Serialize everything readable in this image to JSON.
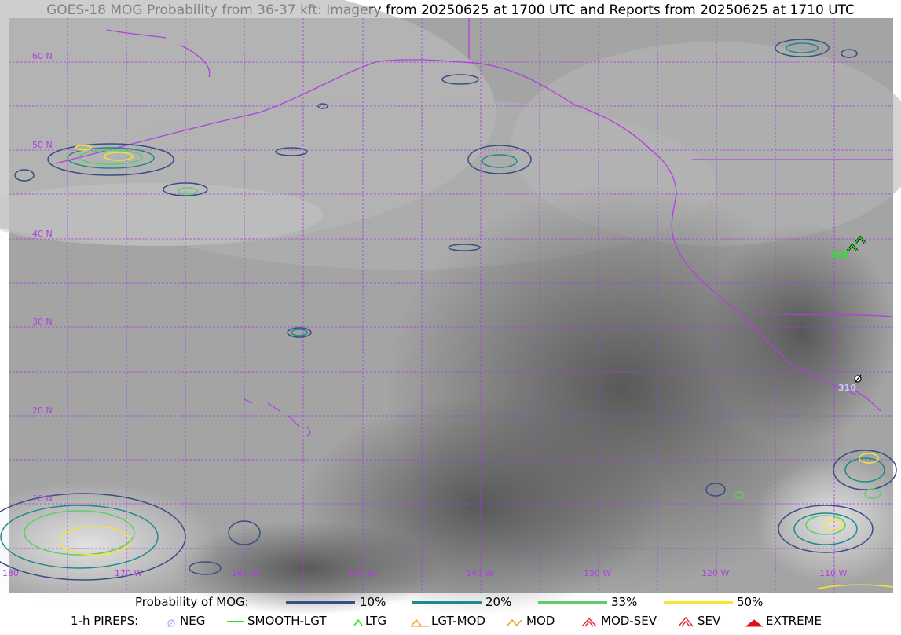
{
  "title": "GOES-18 MOG Probability from 36-37 kft: Imagery from 20250625 at 1700 UTC and Reports from 20250625 at 1710 UTC",
  "map": {
    "lat_labels": [
      "60 N",
      "50 N",
      "40 N",
      "30 N",
      "20 N",
      "10 N"
    ],
    "lon_labels": [
      "180",
      "170 W",
      "160 W",
      "150 W",
      "140 W",
      "130 W",
      "120 W",
      "110 W"
    ],
    "pirep_reports": [
      {
        "type": "LTG",
        "altitude_label": "330"
      },
      {
        "type": "NEG",
        "altitude_label": "310"
      }
    ],
    "colors": {
      "border": "#b040e0",
      "grid": "#a040e0",
      "ltg": "#22ee22",
      "neg": "#c8c8ff"
    }
  },
  "legend": {
    "probability": {
      "title": "Probability of MOG:",
      "items": [
        {
          "label": "10%",
          "color": "#3a4e86"
        },
        {
          "label": "20%",
          "color": "#1f8a88"
        },
        {
          "label": "33%",
          "color": "#5fcb6a"
        },
        {
          "label": "50%",
          "color": "#f5e530"
        }
      ]
    },
    "pireps": {
      "title": "1-h PIREPS:",
      "items": [
        {
          "label": "NEG",
          "icon": "neg-slashed-circle-icon",
          "color": "#b0b8ff"
        },
        {
          "label": "SMOOTH-LGT",
          "icon": "smooth-lgt-line-icon",
          "color": "#22ee22"
        },
        {
          "label": "LTG",
          "icon": "ltg-caret-icon",
          "color": "#22ee22"
        },
        {
          "label": "LGT-MOD",
          "icon": "lgt-mod-caret-icon",
          "color": "#f0a020"
        },
        {
          "label": "MOD",
          "icon": "mod-caret-icon",
          "color": "#f0a020"
        },
        {
          "label": "MOD-SEV",
          "icon": "mod-sev-caret-icon",
          "color": "#e03030"
        },
        {
          "label": "SEV",
          "icon": "sev-caret-icon",
          "color": "#e03030"
        },
        {
          "label": "EXTREME",
          "icon": "extreme-caret-icon",
          "color": "#e01010"
        }
      ]
    }
  }
}
